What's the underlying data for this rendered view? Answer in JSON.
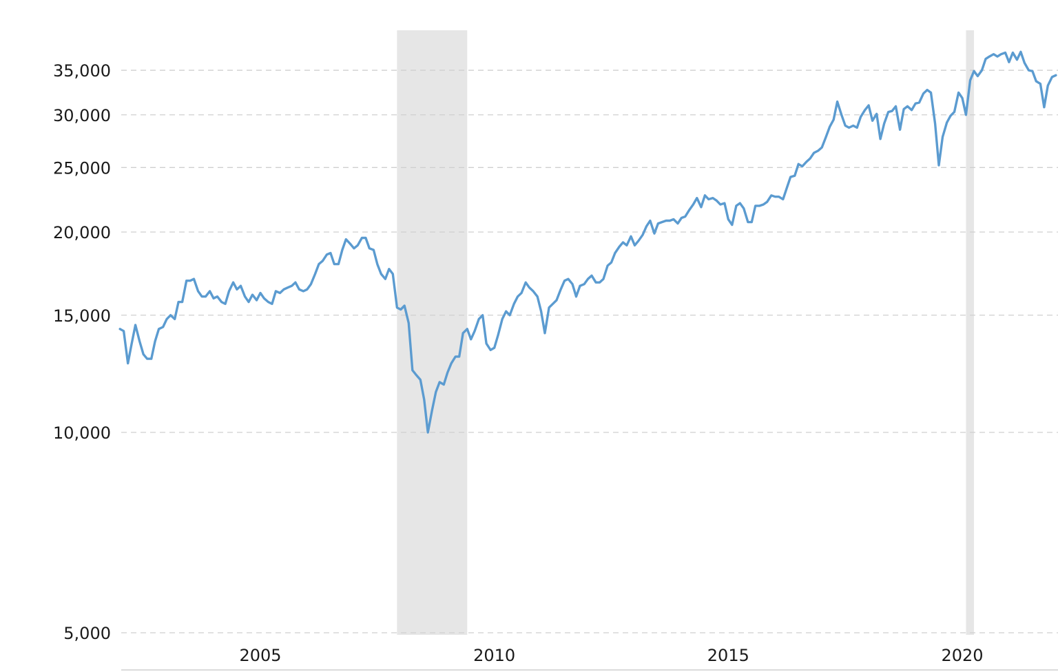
{
  "chart_data": {
    "type": "line",
    "title": "",
    "xlabel": "",
    "ylabel": "",
    "y_scale": "log",
    "ylim": [
      5000,
      39000
    ],
    "xlim": [
      2002.0,
      2022.0
    ],
    "grid": true,
    "y_ticks": [
      {
        "value": 5000,
        "label": "5,000"
      },
      {
        "value": 10000,
        "label": "10,000"
      },
      {
        "value": 15000,
        "label": "15,000"
      },
      {
        "value": 20000,
        "label": "20,000"
      },
      {
        "value": 25000,
        "label": "25,000"
      },
      {
        "value": 30000,
        "label": "30,000"
      },
      {
        "value": 35000,
        "label": "35,000"
      }
    ],
    "x_ticks": [
      {
        "value": 2005,
        "label": "2005"
      },
      {
        "value": 2010,
        "label": "2010"
      },
      {
        "value": 2015,
        "label": "2015"
      },
      {
        "value": 2020,
        "label": "2020"
      }
    ],
    "recessions": [
      {
        "start": 2007.92,
        "end": 2009.42
      },
      {
        "start": 2020.08,
        "end": 2020.25
      }
    ],
    "colors": {
      "line": "#5b9bd0",
      "recession": "#e6e6e6",
      "grid": "#cfcfcf"
    },
    "series": [
      {
        "x": [
          2002.0,
          2002.08,
          2002.17,
          2002.25,
          2002.33,
          2002.42,
          2002.5,
          2002.58,
          2002.67,
          2002.75,
          2002.83,
          2002.92,
          2003.0,
          2003.08,
          2003.17,
          2003.25,
          2003.33,
          2003.42,
          2003.5,
          2003.58,
          2003.67,
          2003.75,
          2003.83,
          2003.92,
          2004.0,
          2004.08,
          2004.17,
          2004.25,
          2004.33,
          2004.42,
          2004.5,
          2004.58,
          2004.67,
          2004.75,
          2004.83,
          2004.92,
          2005.0,
          2005.08,
          2005.17,
          2005.25,
          2005.33,
          2005.42,
          2005.5,
          2005.58,
          2005.67,
          2005.75,
          2005.83,
          2005.92,
          2006.0,
          2006.08,
          2006.17,
          2006.25,
          2006.33,
          2006.42,
          2006.5,
          2006.58,
          2006.67,
          2006.75,
          2006.83,
          2006.92,
          2007.0,
          2007.08,
          2007.17,
          2007.25,
          2007.33,
          2007.42,
          2007.5,
          2007.58,
          2007.67,
          2007.75,
          2007.83,
          2007.92,
          2008.0,
          2008.08,
          2008.17,
          2008.25,
          2008.33,
          2008.42,
          2008.5,
          2008.58,
          2008.67,
          2008.75,
          2008.83,
          2008.92,
          2009.0,
          2009.08,
          2009.17,
          2009.25,
          2009.33,
          2009.42,
          2009.5,
          2009.58,
          2009.67,
          2009.75,
          2009.83,
          2009.92,
          2010.0,
          2010.08,
          2010.17,
          2010.25,
          2010.33,
          2010.42,
          2010.5,
          2010.58,
          2010.67,
          2010.75,
          2010.83,
          2010.92,
          2011.0,
          2011.08,
          2011.17,
          2011.25,
          2011.33,
          2011.42,
          2011.5,
          2011.58,
          2011.67,
          2011.75,
          2011.83,
          2011.92,
          2012.0,
          2012.08,
          2012.17,
          2012.25,
          2012.33,
          2012.42,
          2012.5,
          2012.58,
          2012.67,
          2012.75,
          2012.83,
          2012.92,
          2013.0,
          2013.08,
          2013.17,
          2013.25,
          2013.33,
          2013.42,
          2013.5,
          2013.58,
          2013.67,
          2013.75,
          2013.83,
          2013.92,
          2014.0,
          2014.08,
          2014.17,
          2014.25,
          2014.33,
          2014.42,
          2014.5,
          2014.58,
          2014.67,
          2014.75,
          2014.83,
          2014.92,
          2015.0,
          2015.08,
          2015.17,
          2015.25,
          2015.33,
          2015.42,
          2015.5,
          2015.58,
          2015.67,
          2015.75,
          2015.83,
          2015.92,
          2016.0,
          2016.08,
          2016.17,
          2016.25,
          2016.33,
          2016.42,
          2016.5,
          2016.58,
          2016.67,
          2016.75,
          2016.83,
          2016.92,
          2017.0,
          2017.08,
          2017.17,
          2017.25,
          2017.33,
          2017.42,
          2017.5,
          2017.58,
          2017.67,
          2017.75,
          2017.83,
          2017.92,
          2018.0,
          2018.08,
          2018.17,
          2018.25,
          2018.33,
          2018.42,
          2018.5,
          2018.58,
          2018.67,
          2018.75,
          2018.83,
          2018.92,
          2019.0,
          2019.08,
          2019.17,
          2019.25,
          2019.33,
          2019.42,
          2019.5,
          2019.58,
          2019.67,
          2019.75,
          2019.83,
          2019.92,
          2020.0,
          2020.08,
          2020.17,
          2020.25,
          2020.33,
          2020.42,
          2020.5,
          2020.58,
          2020.67,
          2020.75,
          2020.83,
          2020.92,
          2021.0,
          2021.08,
          2021.17,
          2021.25,
          2021.33,
          2021.42,
          2021.5,
          2021.58,
          2021.67,
          2021.75,
          2021.83,
          2021.92,
          2022.0
        ],
        "values": [
          14300,
          14200,
          12700,
          13600,
          14500,
          13700,
          13100,
          12900,
          12900,
          13700,
          14300,
          14400,
          14800,
          15000,
          14800,
          15700,
          15700,
          16900,
          16900,
          17000,
          16300,
          16000,
          16000,
          16300,
          15900,
          16000,
          15700,
          15600,
          16300,
          16800,
          16400,
          16600,
          16000,
          15700,
          16100,
          15800,
          16200,
          15900,
          15700,
          15600,
          16300,
          16200,
          16400,
          16500,
          16600,
          16800,
          16400,
          16300,
          16400,
          16700,
          17300,
          17900,
          18100,
          18500,
          18600,
          17900,
          17900,
          18800,
          19500,
          19200,
          18900,
          19100,
          19600,
          19600,
          18900,
          18800,
          17900,
          17300,
          17000,
          17600,
          17300,
          15400,
          15300,
          15500,
          14600,
          12400,
          12200,
          12000,
          11200,
          10000,
          10800,
          11500,
          11900,
          11800,
          12300,
          12700,
          13000,
          13000,
          14100,
          14300,
          13800,
          14200,
          14800,
          15000,
          13600,
          13300,
          13400,
          14000,
          14800,
          15200,
          15000,
          15600,
          16000,
          16200,
          16800,
          16500,
          16300,
          16000,
          15200,
          14100,
          15400,
          15600,
          15800,
          16400,
          16900,
          17000,
          16700,
          16000,
          16600,
          16700,
          17000,
          17200,
          16800,
          16800,
          17000,
          17800,
          18000,
          18600,
          19000,
          19300,
          19100,
          19700,
          19100,
          19400,
          19800,
          20400,
          20800,
          19900,
          20600,
          20700,
          20800,
          20800,
          20900,
          20600,
          21000,
          21100,
          21600,
          22000,
          22500,
          21800,
          22700,
          22400,
          22500,
          22300,
          22000,
          22100,
          20900,
          20500,
          21900,
          22100,
          21700,
          20700,
          20700,
          21900,
          21900,
          22000,
          22200,
          22700,
          22600,
          22600,
          22400,
          23300,
          24200,
          24300,
          25300,
          25100,
          25500,
          25800,
          26300,
          26500,
          26800,
          27700,
          28800,
          29500,
          31400,
          30000,
          28900,
          28700,
          28900,
          28700,
          29800,
          30500,
          31000,
          29400,
          30100,
          27600,
          29100,
          30300,
          30400,
          30900,
          28500,
          30600,
          30900,
          30500,
          31200,
          31300,
          32300,
          32700,
          32400,
          29100,
          25200,
          27800,
          29200,
          29900,
          30300,
          32400,
          31800,
          30000,
          33800,
          34900,
          34300,
          35000,
          36400,
          36700,
          37000,
          36700,
          37000,
          37200,
          36000,
          37200,
          36300,
          37300,
          35900,
          35000,
          34900,
          33700,
          33400,
          30800,
          33200,
          34200,
          34400
        ]
      }
    ]
  }
}
